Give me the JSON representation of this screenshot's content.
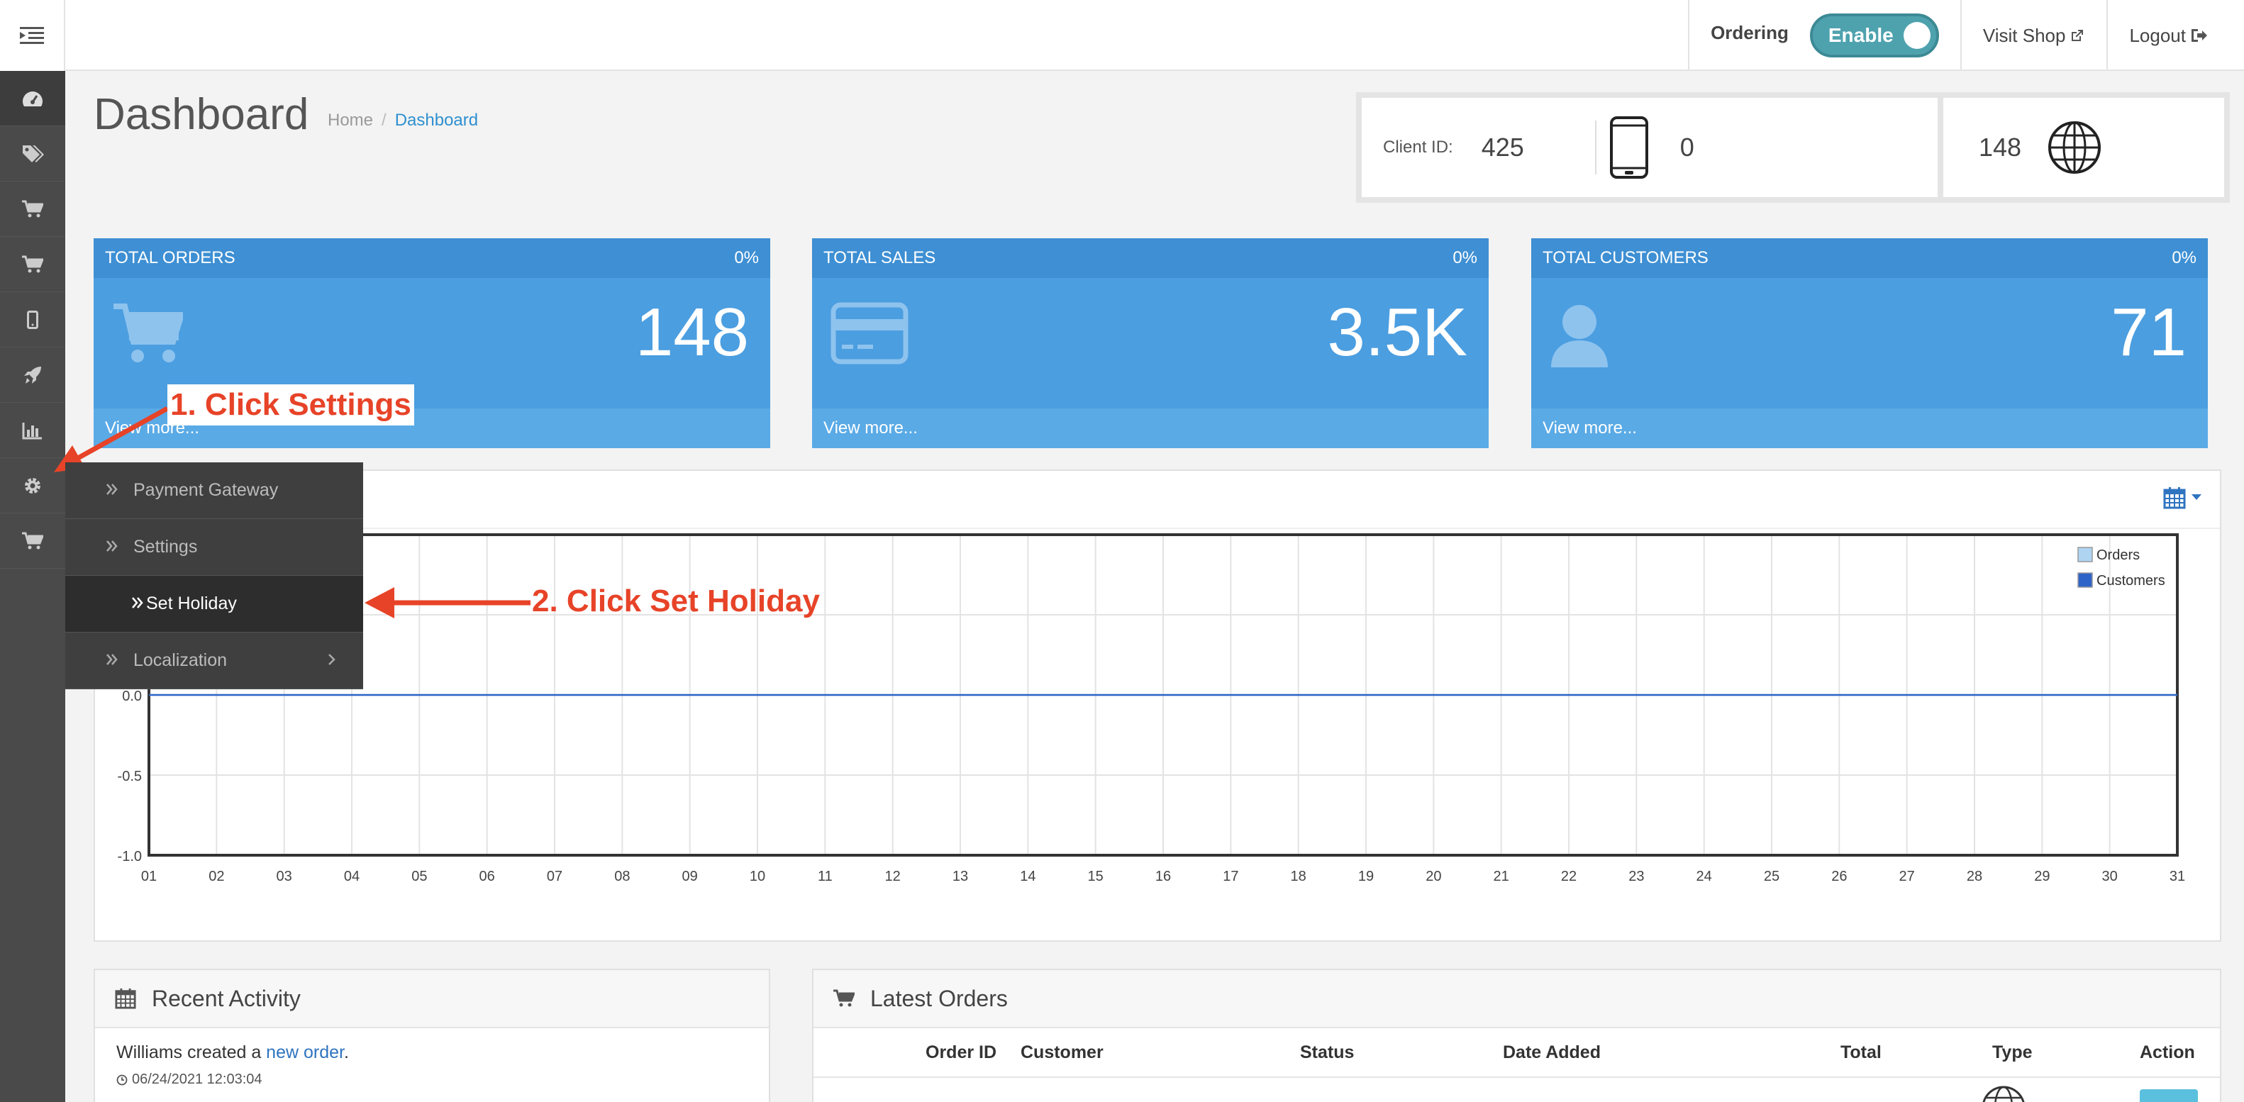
{
  "header": {
    "ordering_label": "Ordering",
    "ordering_toggle": "Enable",
    "visit_shop": "Visit Shop",
    "logout": "Logout"
  },
  "sidebar": {
    "icons": [
      "dashboard-icon",
      "tags-icon",
      "cart-icon",
      "cart-icon",
      "mobile-icon",
      "rocket-icon",
      "bar-chart-icon",
      "gear-icon",
      "cart-icon"
    ]
  },
  "page": {
    "title": "Dashboard",
    "breadcrumb": {
      "home": "Home",
      "sep": "/",
      "current": "Dashboard"
    }
  },
  "client": {
    "label": "Client ID:",
    "id": "425",
    "mobile_count": "0",
    "web_count": "148"
  },
  "tiles": [
    {
      "title": "TOTAL ORDERS",
      "pct": "0%",
      "value": "148",
      "footer": "View more..."
    },
    {
      "title": "TOTAL SALES",
      "pct": "0%",
      "value": "3.5K",
      "footer": "View more..."
    },
    {
      "title": "TOTAL CUSTOMERS",
      "pct": "0%",
      "value": "71",
      "footer": "View more..."
    }
  ],
  "flyout": {
    "items": [
      "Payment Gateway",
      "Settings",
      "Set Holiday",
      "Localization"
    ]
  },
  "annotations": {
    "step1": "1. Click Settings",
    "step2": "2. Click Set Holiday"
  },
  "chart_data": {
    "type": "line",
    "x": [
      "01",
      "02",
      "03",
      "04",
      "05",
      "06",
      "07",
      "08",
      "09",
      "10",
      "11",
      "12",
      "13",
      "14",
      "15",
      "16",
      "17",
      "18",
      "19",
      "20",
      "21",
      "22",
      "23",
      "24",
      "25",
      "26",
      "27",
      "28",
      "29",
      "30",
      "31"
    ],
    "series": [
      {
        "name": "Orders",
        "values": [
          0,
          0,
          0,
          0,
          0,
          0,
          0,
          0,
          0,
          0,
          0,
          0,
          0,
          0,
          0,
          0,
          0,
          0,
          0,
          0,
          0,
          0,
          0,
          0,
          0,
          0,
          0,
          0,
          0,
          0,
          0
        ],
        "color": "#aed4f2"
      },
      {
        "name": "Customers",
        "values": [
          0,
          0,
          0,
          0,
          0,
          0,
          0,
          0,
          0,
          0,
          0,
          0,
          0,
          0,
          0,
          0,
          0,
          0,
          0,
          0,
          0,
          0,
          0,
          0,
          0,
          0,
          0,
          0,
          0,
          0,
          0
        ],
        "color": "#2e64c8"
      }
    ],
    "y_ticks": [
      "0.0",
      "-0.5",
      "-1.0"
    ],
    "ylim": [
      -1.0,
      1.0
    ],
    "grid": true,
    "legend": "top-right"
  },
  "recent_activity": {
    "title": "Recent Activity",
    "entry_prefix": "Williams created a ",
    "entry_link": "new order",
    "entry_suffix": ".",
    "entry_time": "06/24/2021 12:03:04"
  },
  "latest_orders": {
    "title": "Latest Orders",
    "columns": [
      "Order ID",
      "Customer",
      "Status",
      "Date Added",
      "Total",
      "Type",
      "Action"
    ]
  },
  "colors": {
    "tile_blue": "#4b9ee0",
    "annotation_red": "#e74328",
    "sidebar": "#4a4a4a"
  }
}
